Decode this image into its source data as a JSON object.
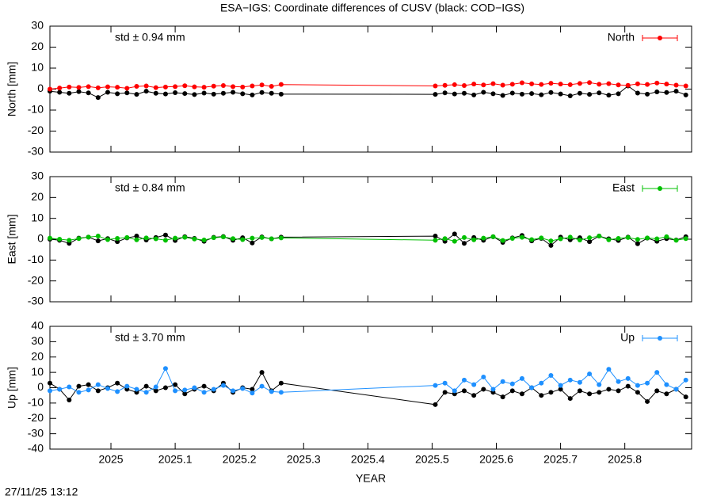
{
  "title": "ESA−IGS: Coordinate differences of CUSV (black: COD−IGS)",
  "timestamp": "27/11/25 13:12",
  "chart_data": [
    {
      "type": "line",
      "ylabel": "North [mm]",
      "annotation": "std ± 0.94 mm",
      "annotation_color": "#ff0000",
      "legend": "upper right",
      "xlim": [
        2024.905,
        2025.904
      ],
      "ylim": [
        -30,
        30
      ],
      "yticks": [
        -30,
        -20,
        -10,
        0,
        10,
        20,
        30
      ],
      "x": [
        2024.905,
        2024.92,
        2024.935,
        2024.95,
        2024.965,
        2024.98,
        2024.995,
        2025.01,
        2025.025,
        2025.04,
        2025.055,
        2025.07,
        2025.085,
        2025.1,
        2025.115,
        2025.13,
        2025.145,
        2025.16,
        2025.175,
        2025.19,
        2025.205,
        2025.22,
        2025.235,
        2025.25,
        2025.265,
        2025.505,
        2025.52,
        2025.535,
        2025.55,
        2025.565,
        2025.58,
        2025.595,
        2025.61,
        2025.625,
        2025.64,
        2025.655,
        2025.67,
        2025.685,
        2025.7,
        2025.715,
        2025.73,
        2025.745,
        2025.76,
        2025.775,
        2025.79,
        2025.805,
        2025.82,
        2025.835,
        2025.85,
        2025.865,
        2025.88,
        2025.895
      ],
      "series": [
        {
          "color": "#000000",
          "values": [
            -1,
            -1.5,
            -2,
            -1.2,
            -1.8,
            -4,
            -1.5,
            -2.2,
            -1.8,
            -2.5,
            -1.0,
            -2.0,
            -2.3,
            -1.7,
            -2.1,
            -2.6,
            -1.9,
            -2.4,
            -2.0,
            -1.5,
            -2.2,
            -2.8,
            -1.6,
            -2.0,
            -2.4,
            -2.5,
            -1.8,
            -2.3,
            -2.0,
            -2.8,
            -1.5,
            -2.2,
            -3.0,
            -1.9,
            -2.4,
            -2.1,
            -2.7,
            -1.6,
            -2.3,
            -3.2,
            -2.0,
            -2.5,
            -1.8,
            -2.9,
            -2.2,
            1.5,
            -1.9,
            -2.4,
            -1.3,
            -1.6,
            -1.0,
            -2.8
          ]
        },
        {
          "name": "North",
          "color": "#ff0000",
          "values": [
            0,
            0.5,
            1,
            0.8,
            1.2,
            0.6,
            1.1,
            0.9,
            0.4,
            1.3,
            1.5,
            0.7,
            1.0,
            1.2,
            1.6,
            1.1,
            0.9,
            1.4,
            1.7,
            1.2,
            1.0,
            1.5,
            2.0,
            1.3,
            2.2,
            1.5,
            1.8,
            2.1,
            1.7,
            2.4,
            2.0,
            2.6,
            1.9,
            2.3,
            3.0,
            2.5,
            2.2,
            2.8,
            2.4,
            2.1,
            2.7,
            3.1,
            2.3,
            2.6,
            2.0,
            1.8,
            2.5,
            2.2,
            2.9,
            2.4,
            1.9,
            1.5
          ]
        }
      ]
    },
    {
      "type": "line",
      "ylabel": "East [mm]",
      "annotation": "std ± 0.84 mm",
      "annotation_color": "#00c000",
      "legend": "upper right",
      "xlim": [
        2024.905,
        2025.904
      ],
      "ylim": [
        -30,
        30
      ],
      "yticks": [
        -30,
        -20,
        -10,
        0,
        10,
        20,
        30
      ],
      "x": [
        2024.905,
        2024.92,
        2024.935,
        2024.95,
        2024.965,
        2024.98,
        2024.995,
        2025.01,
        2025.025,
        2025.04,
        2025.055,
        2025.07,
        2025.085,
        2025.1,
        2025.115,
        2025.13,
        2025.145,
        2025.16,
        2025.175,
        2025.19,
        2025.205,
        2025.22,
        2025.235,
        2025.25,
        2025.265,
        2025.505,
        2025.52,
        2025.535,
        2025.55,
        2025.565,
        2025.58,
        2025.595,
        2025.61,
        2025.625,
        2025.64,
        2025.655,
        2025.67,
        2025.685,
        2025.7,
        2025.715,
        2025.73,
        2025.745,
        2025.76,
        2025.775,
        2025.79,
        2025.805,
        2025.82,
        2025.835,
        2025.85,
        2025.865,
        2025.88,
        2025.895
      ],
      "series": [
        {
          "color": "#000000",
          "values": [
            0,
            -0.5,
            -2,
            0.5,
            1.0,
            -0.8,
            0.3,
            -1.2,
            0.6,
            1.5,
            -0.4,
            0.8,
            2.0,
            -0.6,
            1.2,
            0.4,
            -1.0,
            0.9,
            1.3,
            -0.5,
            0.7,
            -1.8,
            1.1,
            0.2,
            1.0,
            1.5,
            -1.0,
            2.5,
            -2.0,
            0.8,
            -0.5,
            1.2,
            -1.5,
            0.6,
            1.8,
            -0.8,
            0.4,
            -3.0,
            1.0,
            -0.3,
            0.7,
            -1.2,
            1.5,
            0.2,
            -0.6,
            1.0,
            -2.2,
            0.5,
            -1.0,
            0.3,
            -0.4,
            1.2
          ]
        },
        {
          "name": "East",
          "color": "#00c000",
          "values": [
            0.5,
            0,
            -0.5,
            0.3,
            1.0,
            1.5,
            -0.2,
            0.4,
            0.8,
            -0.3,
            0.6,
            0.2,
            -0.5,
            0.5,
            0.9,
            0.1,
            -0.4,
            0.7,
            1.1,
            0.3,
            -0.2,
            0.5,
            0.8,
            0.2,
            0.6,
            -0.5,
            0.3,
            -1.0,
            0.8,
            -0.3,
            0.5,
            1.2,
            -0.6,
            0.4,
            0.9,
            -0.2,
            0.6,
            -0.8,
            0.2,
            1.0,
            -0.4,
            0.7,
            1.5,
            -0.3,
            0.4,
            0.8,
            -0.1,
            0.6,
            0.2,
            1.2,
            -0.5,
            0.3
          ]
        }
      ]
    },
    {
      "type": "line",
      "ylabel": "Up [mm]",
      "xlabel": "YEAR",
      "annotation": "std ± 3.70 mm",
      "annotation_color": "#1e90ff",
      "legend": "upper right",
      "xlim": [
        2024.905,
        2025.904
      ],
      "xticks": [
        2025,
        2025.1,
        2025.2,
        2025.3,
        2025.4,
        2025.5,
        2025.6,
        2025.7,
        2025.8
      ],
      "ylim": [
        -40,
        40
      ],
      "yticks": [
        -40,
        -30,
        -20,
        -10,
        0,
        10,
        20,
        30,
        40
      ],
      "x": [
        2024.905,
        2024.92,
        2024.935,
        2024.95,
        2024.965,
        2024.98,
        2024.995,
        2025.01,
        2025.025,
        2025.04,
        2025.055,
        2025.07,
        2025.085,
        2025.1,
        2025.115,
        2025.13,
        2025.145,
        2025.16,
        2025.175,
        2025.19,
        2025.205,
        2025.22,
        2025.235,
        2025.25,
        2025.265,
        2025.505,
        2025.52,
        2025.535,
        2025.55,
        2025.565,
        2025.58,
        2025.595,
        2025.61,
        2025.625,
        2025.64,
        2025.655,
        2025.67,
        2025.685,
        2025.7,
        2025.715,
        2025.73,
        2025.745,
        2025.76,
        2025.775,
        2025.79,
        2025.805,
        2025.82,
        2025.835,
        2025.85,
        2025.865,
        2025.88,
        2025.895
      ],
      "series": [
        {
          "color": "#000000",
          "values": [
            3,
            -1,
            -8,
            1,
            2,
            -2,
            0,
            3,
            -1,
            -3,
            1,
            -2,
            0,
            2,
            -4,
            -1,
            1,
            -2,
            3,
            -3,
            0,
            -1,
            10,
            -2,
            3,
            -11,
            -3,
            -4,
            -2,
            -5,
            -1,
            -3,
            -6,
            -2,
            -4,
            0,
            -5,
            -3,
            -1,
            -7,
            -2,
            -4,
            -3,
            -1,
            -2,
            1,
            -3,
            -9,
            -2,
            -4,
            -1,
            -6
          ]
        },
        {
          "name": "Up",
          "color": "#1e90ff",
          "values": [
            -2,
            -1,
            0.5,
            -3,
            -1.5,
            2,
            -0.5,
            -2.5,
            1,
            -1,
            -3,
            0.5,
            12.5,
            -2,
            -1.5,
            0,
            -3,
            -1,
            1.5,
            -2,
            -0.5,
            -3.5,
            1,
            -2.5,
            -3,
            1.5,
            3,
            -2,
            5,
            2,
            7,
            -1,
            4,
            2.5,
            6,
            0,
            3,
            8,
            1.5,
            5,
            3.5,
            9,
            2,
            12,
            4,
            6,
            1.5,
            3,
            10,
            2,
            -1,
            5
          ]
        }
      ]
    }
  ]
}
